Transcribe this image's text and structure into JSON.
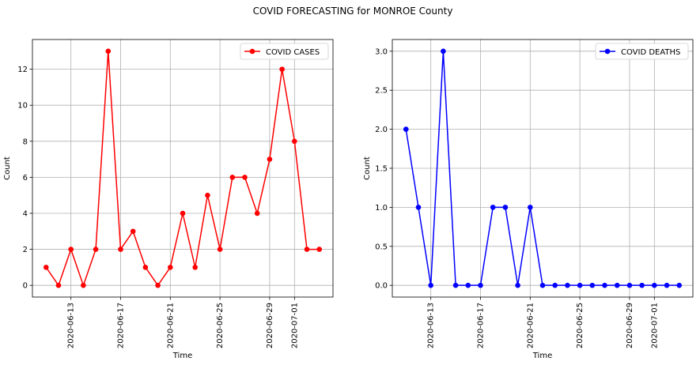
{
  "figure_title": "COVID FORECASTING for MONROE County",
  "chart_data": [
    {
      "type": "line",
      "title": "",
      "xlabel": "Time",
      "ylabel": "Count",
      "x": [
        "2020-06-11",
        "2020-06-12",
        "2020-06-13",
        "2020-06-14",
        "2020-06-15",
        "2020-06-16",
        "2020-06-17",
        "2020-06-18",
        "2020-06-19",
        "2020-06-20",
        "2020-06-21",
        "2020-06-22",
        "2020-06-23",
        "2020-06-24",
        "2020-06-25",
        "2020-06-26",
        "2020-06-27",
        "2020-06-28",
        "2020-06-29",
        "2020-06-30",
        "2020-07-01",
        "2020-07-02",
        "2020-07-03"
      ],
      "series": [
        {
          "name": "COVID CASES",
          "color": "#ff0000",
          "values": [
            1,
            0,
            2,
            0,
            2,
            13,
            2,
            3,
            1,
            0,
            1,
            4,
            1,
            5,
            2,
            6,
            6,
            4,
            7,
            12,
            8,
            2,
            2
          ]
        }
      ],
      "xticks": [
        "2020-06-13",
        "2020-06-17",
        "2020-06-21",
        "2020-06-25",
        "2020-06-29",
        "2020-07-01"
      ],
      "yticks": [
        "0",
        "2",
        "4",
        "6",
        "8",
        "10",
        "12"
      ],
      "ylim": [
        -0.65,
        13.65
      ],
      "xlim": [
        "2020-06-09.9",
        "2020-07-04.1"
      ],
      "grid": true,
      "legend": "top-right"
    },
    {
      "type": "line",
      "title": "",
      "xlabel": "Time",
      "ylabel": "Count",
      "x": [
        "2020-06-11",
        "2020-06-12",
        "2020-06-13",
        "2020-06-14",
        "2020-06-15",
        "2020-06-16",
        "2020-06-17",
        "2020-06-18",
        "2020-06-19",
        "2020-06-20",
        "2020-06-21",
        "2020-06-22",
        "2020-06-23",
        "2020-06-24",
        "2020-06-25",
        "2020-06-26",
        "2020-06-27",
        "2020-06-28",
        "2020-06-29",
        "2020-06-30",
        "2020-07-01",
        "2020-07-02",
        "2020-07-03"
      ],
      "series": [
        {
          "name": "COVID DEATHS",
          "color": "#0000ff",
          "values": [
            2,
            1,
            0,
            3,
            0,
            0,
            0,
            1,
            1,
            0,
            1,
            0,
            0,
            0,
            0,
            0,
            0,
            0,
            0,
            0,
            0,
            0,
            0
          ]
        }
      ],
      "xticks": [
        "2020-06-13",
        "2020-06-17",
        "2020-06-21",
        "2020-06-25",
        "2020-06-29",
        "2020-07-01"
      ],
      "yticks": [
        "0.0",
        "0.5",
        "1.0",
        "1.5",
        "2.0",
        "2.5",
        "3.0"
      ],
      "ylim": [
        -0.15,
        3.15
      ],
      "xlim": [
        "2020-06-09.9",
        "2020-07-04.1"
      ],
      "grid": true,
      "legend": "top-right"
    }
  ]
}
